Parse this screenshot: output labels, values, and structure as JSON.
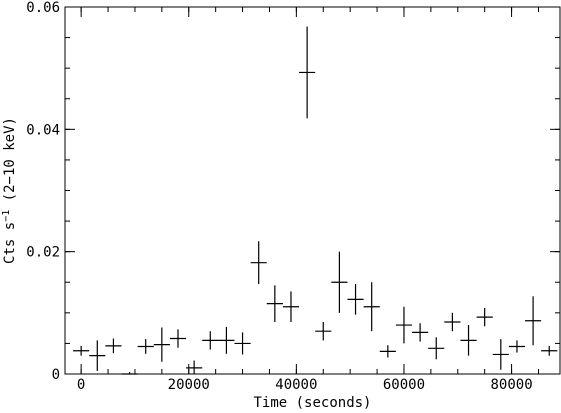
{
  "chart_data": {
    "type": "scatter",
    "title": "",
    "xlabel": "Time (seconds)",
    "ylabel_main": "Cts s",
    "ylabel_sup": "−1",
    "ylabel_tail": " (2−10 keV)",
    "xlim": [
      -3000,
      89000
    ],
    "ylim": [
      0,
      0.06
    ],
    "x_major_ticks": [
      0,
      20000,
      40000,
      60000,
      80000
    ],
    "x_tick_labels": [
      "0",
      "20000",
      "40000",
      "60000",
      "80000"
    ],
    "x_minor_step": 5000,
    "y_major_ticks": [
      0,
      0.02,
      0.04,
      0.06
    ],
    "y_tick_labels": [
      "0",
      "0.02",
      "0.04",
      "0.06"
    ],
    "y_minor_step": 0.005,
    "x_half_width": 1500,
    "points": [
      {
        "x": 0,
        "y": 0.0038,
        "err": 0.0008
      },
      {
        "x": 3000,
        "y": 0.003,
        "err": 0.0025
      },
      {
        "x": 6000,
        "y": 0.0046,
        "err": 0.0012
      },
      {
        "x": 9000,
        "y": 0.0,
        "err": 0.0003
      },
      {
        "x": 12000,
        "y": 0.0045,
        "err": 0.0012
      },
      {
        "x": 15000,
        "y": 0.0048,
        "err": 0.0028
      },
      {
        "x": 18000,
        "y": 0.0058,
        "err": 0.0015
      },
      {
        "x": 21000,
        "y": 0.001,
        "err": 0.0012
      },
      {
        "x": 24000,
        "y": 0.0055,
        "err": 0.0015
      },
      {
        "x": 27000,
        "y": 0.0055,
        "err": 0.0022
      },
      {
        "x": 30000,
        "y": 0.005,
        "err": 0.0018
      },
      {
        "x": 33000,
        "y": 0.0182,
        "err": 0.0035
      },
      {
        "x": 36000,
        "y": 0.0115,
        "err": 0.003
      },
      {
        "x": 39000,
        "y": 0.011,
        "err": 0.0025
      },
      {
        "x": 42000,
        "y": 0.0493,
        "err": 0.0075
      },
      {
        "x": 45000,
        "y": 0.007,
        "err": 0.0015
      },
      {
        "x": 48000,
        "y": 0.015,
        "err": 0.005
      },
      {
        "x": 51000,
        "y": 0.0122,
        "err": 0.0025
      },
      {
        "x": 54000,
        "y": 0.011,
        "err": 0.004
      },
      {
        "x": 57000,
        "y": 0.0037,
        "err": 0.001
      },
      {
        "x": 60000,
        "y": 0.008,
        "err": 0.003
      },
      {
        "x": 63000,
        "y": 0.0068,
        "err": 0.0015
      },
      {
        "x": 66000,
        "y": 0.0042,
        "err": 0.0018
      },
      {
        "x": 69000,
        "y": 0.0085,
        "err": 0.0015
      },
      {
        "x": 72000,
        "y": 0.0055,
        "err": 0.0025
      },
      {
        "x": 75000,
        "y": 0.0093,
        "err": 0.0015
      },
      {
        "x": 78000,
        "y": 0.0032,
        "err": 0.0025
      },
      {
        "x": 81000,
        "y": 0.0045,
        "err": 0.001
      },
      {
        "x": 84000,
        "y": 0.0087,
        "err": 0.004
      },
      {
        "x": 87000,
        "y": 0.0038,
        "err": 0.0008
      }
    ]
  }
}
